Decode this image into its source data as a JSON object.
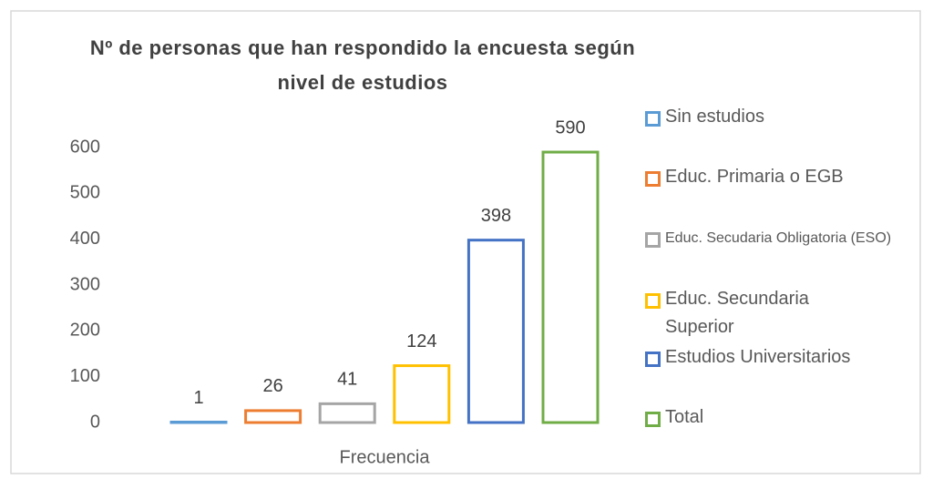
{
  "chart_data": {
    "type": "bar",
    "title": "Nº de personas que han respondido la encuesta según nivel de estudios",
    "categories": [
      "Frecuencia"
    ],
    "series": [
      {
        "name": "Sin estudios",
        "color": "#5b9bd5",
        "values": [
          1
        ]
      },
      {
        "name": "Educ. Primaria o EGB",
        "color": "#ed7d31",
        "values": [
          26
        ]
      },
      {
        "name": "Educ. Secudaria Obligatoria (ESO)",
        "color": "#a5a5a5",
        "values": [
          41
        ]
      },
      {
        "name": "Educ. Secundaria Superior",
        "color": "#ffc000",
        "values": [
          124
        ]
      },
      {
        "name": "Estudios Universitarios",
        "color": "#4472c4",
        "values": [
          398
        ]
      },
      {
        "name": "Total",
        "color": "#70ad47",
        "values": [
          590
        ]
      }
    ],
    "ylim": [
      0,
      600
    ],
    "yticks": [
      0,
      100,
      200,
      300,
      400,
      500,
      600
    ],
    "grid": false,
    "legend": "right"
  }
}
